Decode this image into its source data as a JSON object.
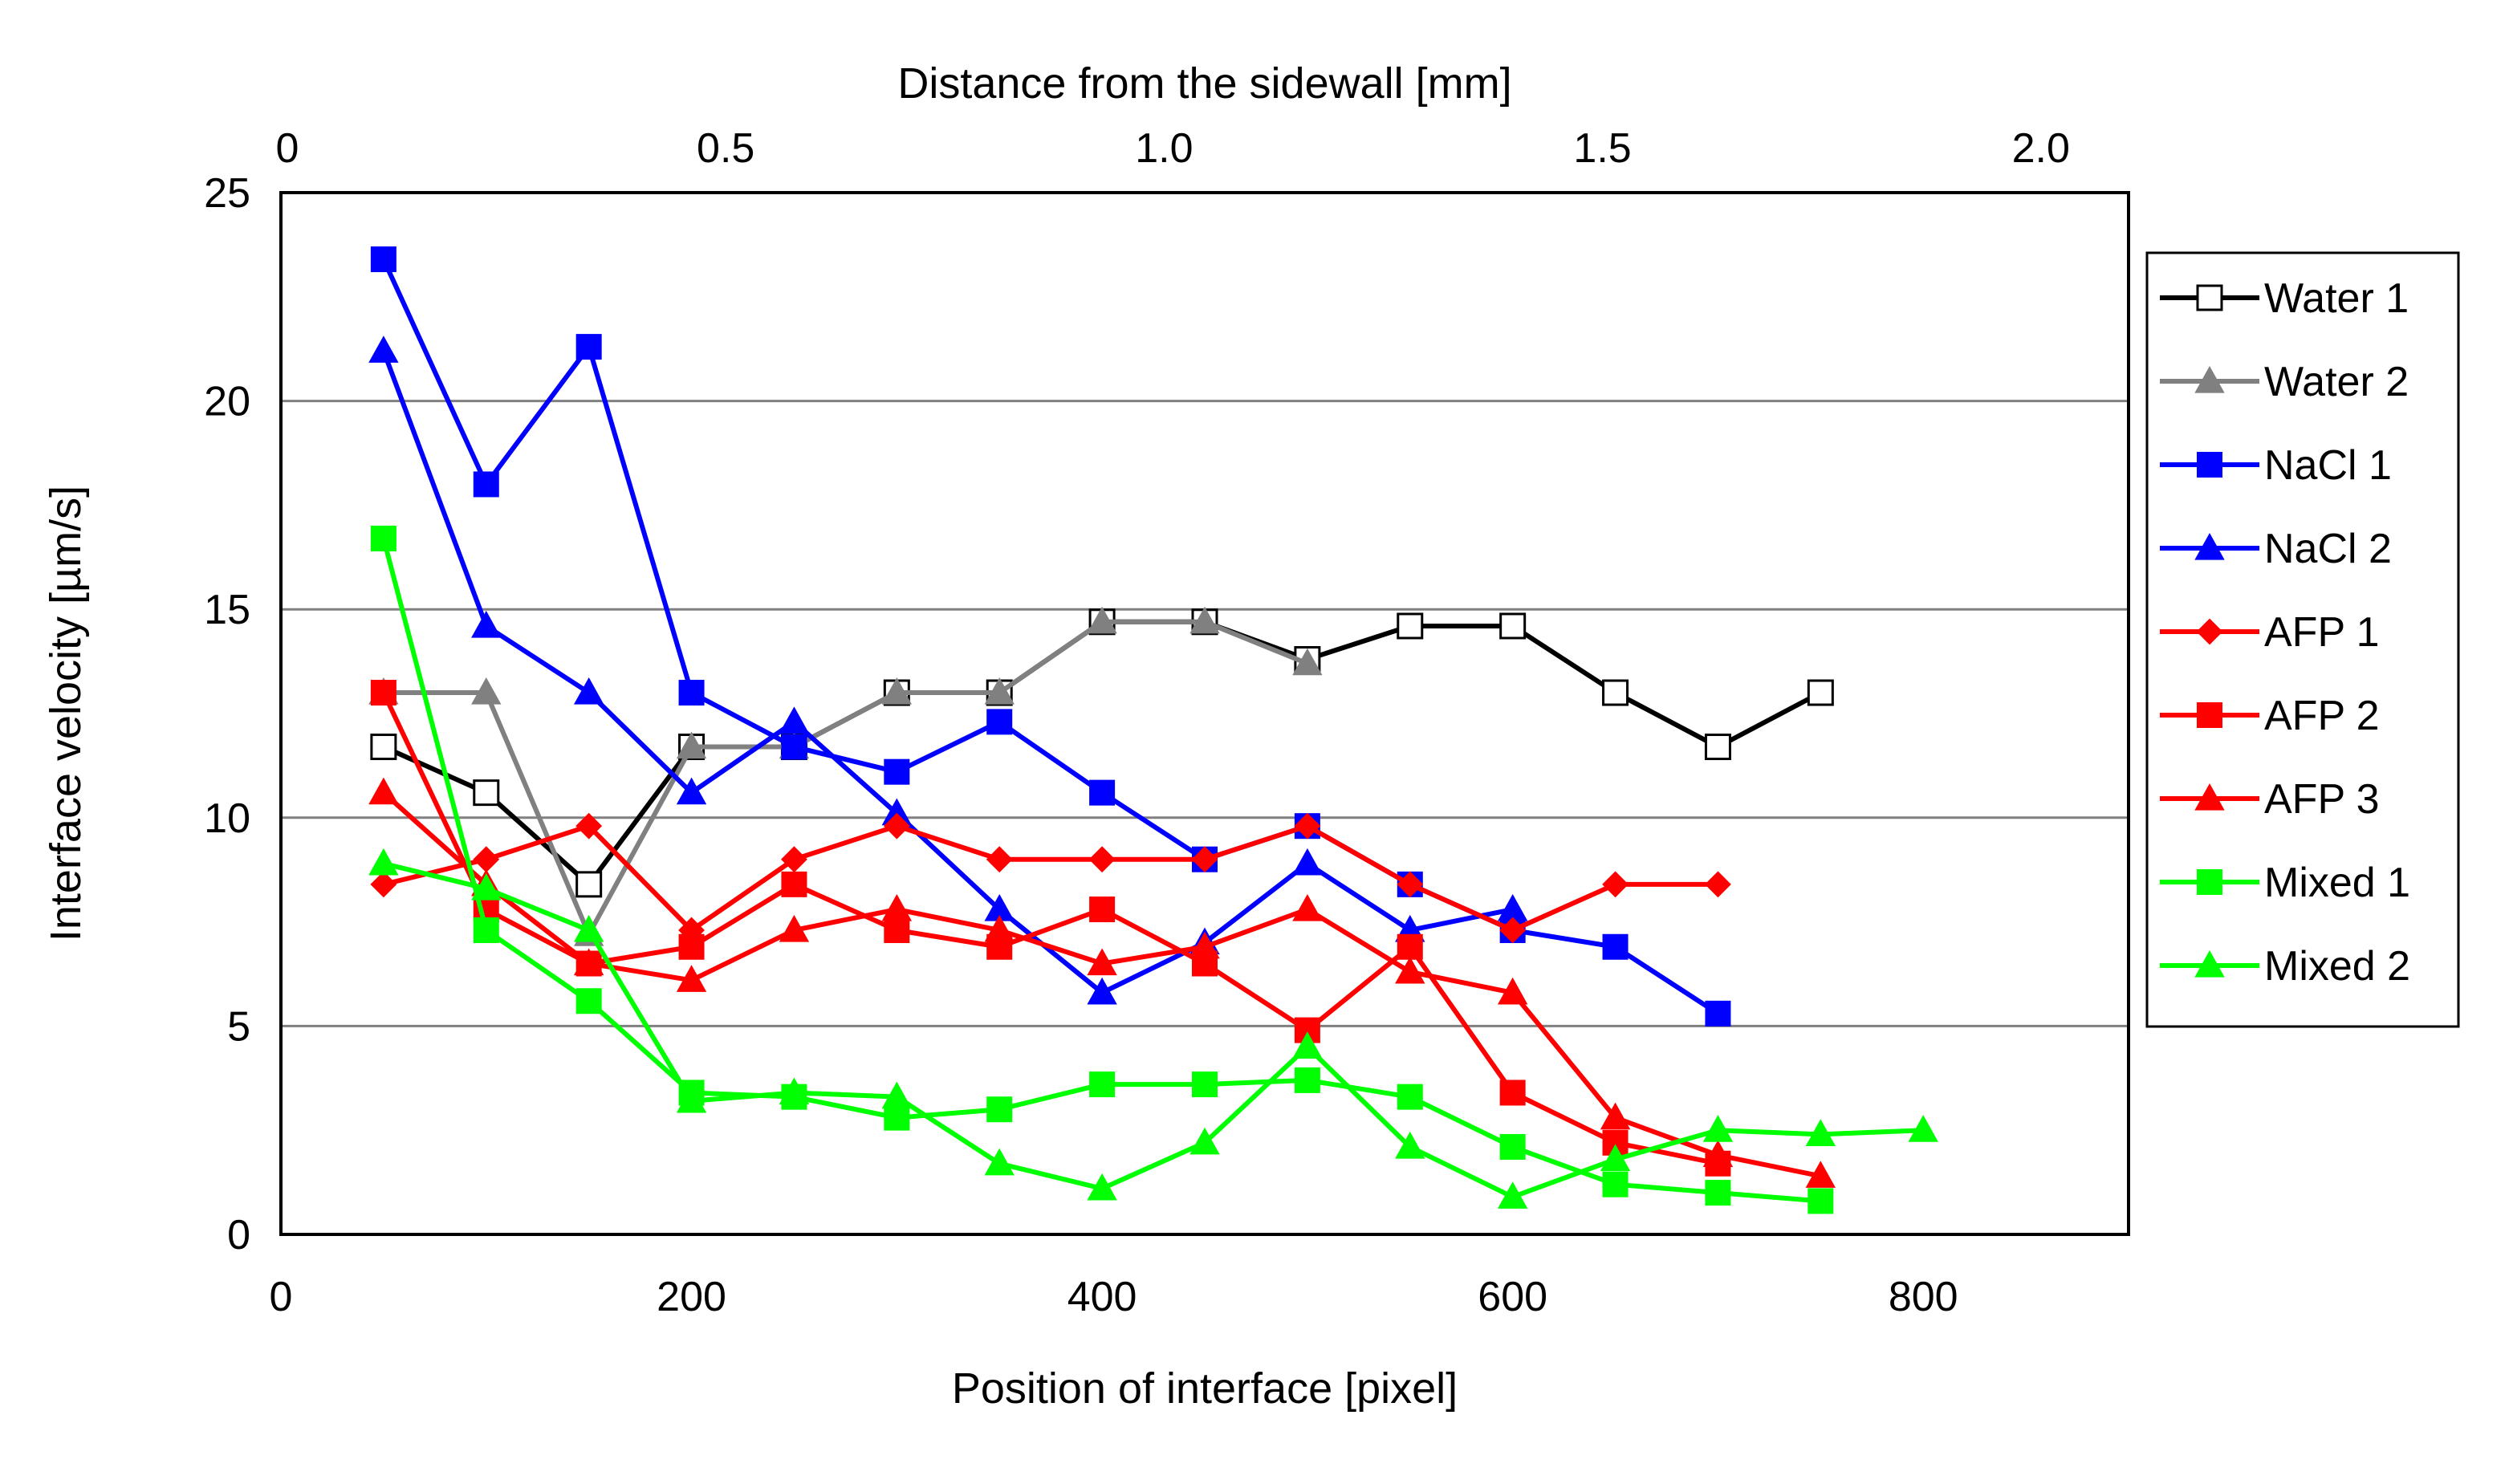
{
  "chart_data": {
    "type": "line",
    "title": "",
    "xlabel": "Position of interface [pixel]",
    "ylabel": "Interface velocity  [µm/s]",
    "x2label": "Distance from the sidewall [mm]",
    "xlim": [
      0,
      900
    ],
    "ylim": [
      0,
      25
    ],
    "x_ticks": [
      0,
      200,
      400,
      600,
      800
    ],
    "y_ticks": [
      0,
      5,
      10,
      15,
      20,
      25
    ],
    "x2_lim": [
      0,
      2.1
    ],
    "x2_ticks": [
      {
        "value": 0,
        "label": "0"
      },
      {
        "value": 0.5,
        "label": "0.5"
      },
      {
        "value": 1.0,
        "label": "1.0"
      },
      {
        "value": 1.5,
        "label": "1.5"
      },
      {
        "value": 2.0,
        "label": "2.0"
      }
    ],
    "grid": "horizontal",
    "legend_position": "right",
    "series": [
      {
        "name": "Water 1",
        "color": "#000000",
        "marker": "square-open",
        "x": [
          50,
          100,
          150,
          200,
          250,
          300,
          350,
          400,
          450,
          500,
          550,
          600,
          650,
          700,
          750
        ],
        "y": [
          11.7,
          10.6,
          8.4,
          11.7,
          11.7,
          13.0,
          13.0,
          14.7,
          14.7,
          13.8,
          14.6,
          14.6,
          13.0,
          11.7,
          13.0
        ]
      },
      {
        "name": "Water 2",
        "color": "#808080",
        "marker": "triangle",
        "x": [
          50,
          100,
          150,
          200,
          250,
          300,
          350,
          400,
          450,
          500
        ],
        "y": [
          13.0,
          13.0,
          7.2,
          11.7,
          11.7,
          13.0,
          13.0,
          14.7,
          14.7,
          13.7
        ]
      },
      {
        "name": "NaCl 1",
        "color": "#0000FF",
        "marker": "square",
        "x": [
          50,
          100,
          150,
          200,
          250,
          300,
          350,
          400,
          450,
          500,
          550,
          600,
          650,
          700
        ],
        "y": [
          23.4,
          18.0,
          21.3,
          13.0,
          11.7,
          11.1,
          12.3,
          10.6,
          9.0,
          9.8,
          8.4,
          7.3,
          6.9,
          5.3
        ]
      },
      {
        "name": "NaCl 2",
        "color": "#0000FF",
        "marker": "triangle",
        "x": [
          50,
          100,
          150,
          200,
          250,
          300,
          350,
          400,
          450,
          500,
          550,
          600
        ],
        "y": [
          21.2,
          14.6,
          13.0,
          10.6,
          12.3,
          10.1,
          7.8,
          5.8,
          7.0,
          8.9,
          7.3,
          7.8
        ]
      },
      {
        "name": "AFP 1",
        "color": "#FF0000",
        "marker": "diamond",
        "x": [
          50,
          100,
          150,
          200,
          250,
          300,
          350,
          400,
          450,
          500,
          550,
          600,
          650,
          700
        ],
        "y": [
          8.4,
          9.0,
          9.8,
          7.3,
          9.0,
          9.8,
          9.0,
          9.0,
          9.0,
          9.8,
          8.4,
          7.3,
          8.4,
          8.4
        ]
      },
      {
        "name": "AFP 2",
        "color": "#FF0000",
        "marker": "square",
        "x": [
          50,
          100,
          150,
          200,
          250,
          300,
          350,
          400,
          450,
          500,
          550,
          600,
          650,
          700
        ],
        "y": [
          13.0,
          7.8,
          6.5,
          6.9,
          8.4,
          7.3,
          6.9,
          7.8,
          6.5,
          4.9,
          6.9,
          3.4,
          2.2,
          1.7
        ]
      },
      {
        "name": "AFP 3",
        "color": "#FF0000",
        "marker": "triangle",
        "x": [
          50,
          100,
          150,
          200,
          250,
          300,
          350,
          400,
          450,
          500,
          550,
          600,
          650,
          700,
          750
        ],
        "y": [
          10.6,
          8.4,
          6.5,
          6.1,
          7.3,
          7.8,
          7.3,
          6.5,
          6.9,
          7.8,
          6.3,
          5.8,
          2.8,
          1.9,
          1.4
        ]
      },
      {
        "name": "Mixed 1",
        "color": "#00FF00",
        "marker": "square",
        "x": [
          50,
          100,
          150,
          200,
          250,
          300,
          350,
          400,
          450,
          500,
          550,
          600,
          650,
          700,
          750
        ],
        "y": [
          16.7,
          7.3,
          5.6,
          3.4,
          3.3,
          2.8,
          3.0,
          3.6,
          3.6,
          3.7,
          3.3,
          2.1,
          1.2,
          1.0,
          0.8
        ]
      },
      {
        "name": "Mixed 2",
        "color": "#00FF00",
        "marker": "triangle",
        "x": [
          50,
          100,
          150,
          200,
          250,
          300,
          350,
          400,
          450,
          500,
          550,
          600,
          650,
          700,
          750,
          800
        ],
        "y": [
          8.9,
          8.3,
          7.3,
          3.2,
          3.4,
          3.3,
          1.7,
          1.1,
          2.2,
          4.5,
          2.1,
          0.9,
          1.8,
          2.5,
          2.4,
          2.5
        ]
      }
    ]
  }
}
